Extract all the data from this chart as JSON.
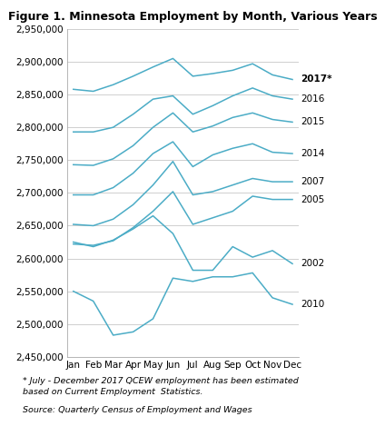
{
  "title": "Figure 1. Minnesota Employment by Month, Various Years",
  "months": [
    "Jan",
    "Feb",
    "Mar",
    "Apr",
    "May",
    "Jun",
    "Jul",
    "Aug",
    "Sep",
    "Oct",
    "Nov",
    "Dec"
  ],
  "series": [
    {
      "year": "2017*",
      "bold": true,
      "values": [
        2858000,
        2855000,
        2865000,
        2878000,
        2892000,
        2905000,
        2878000,
        2882000,
        2887000,
        2897000,
        2880000,
        2873000
      ]
    },
    {
      "year": "2016",
      "bold": false,
      "values": [
        2793000,
        2793000,
        2800000,
        2820000,
        2843000,
        2848000,
        2820000,
        2833000,
        2848000,
        2860000,
        2848000,
        2843000
      ]
    },
    {
      "year": "2015",
      "bold": false,
      "values": [
        2743000,
        2742000,
        2752000,
        2772000,
        2800000,
        2822000,
        2793000,
        2802000,
        2815000,
        2822000,
        2812000,
        2808000
      ]
    },
    {
      "year": "2014",
      "bold": false,
      "values": [
        2697000,
        2697000,
        2708000,
        2730000,
        2760000,
        2778000,
        2740000,
        2758000,
        2768000,
        2775000,
        2762000,
        2760000
      ]
    },
    {
      "year": "2007",
      "bold": false,
      "values": [
        2652000,
        2650000,
        2660000,
        2682000,
        2712000,
        2748000,
        2697000,
        2702000,
        2712000,
        2722000,
        2717000,
        2717000
      ]
    },
    {
      "year": "2005",
      "bold": false,
      "values": [
        2622000,
        2620000,
        2627000,
        2647000,
        2672000,
        2702000,
        2652000,
        2662000,
        2672000,
        2695000,
        2690000,
        2690000
      ]
    },
    {
      "year": "2002",
      "bold": false,
      "values": [
        2625000,
        2618000,
        2628000,
        2645000,
        2665000,
        2638000,
        2582000,
        2582000,
        2618000,
        2602000,
        2612000,
        2592000
      ]
    },
    {
      "year": "2010",
      "bold": false,
      "values": [
        2550000,
        2535000,
        2483000,
        2488000,
        2508000,
        2570000,
        2565000,
        2572000,
        2572000,
        2578000,
        2540000,
        2530000
      ]
    }
  ],
  "line_color": "#4bacc6",
  "ylim": [
    2450000,
    2950000
  ],
  "footnote1": "* July - December 2017 QCEW employment has been estimated",
  "footnote2": "based on Current Employment  Statistics.",
  "footnote3": "Source: Quarterly Census of Employment and Wages",
  "background_color": "#ffffff",
  "grid_color": "#c8c8c8"
}
